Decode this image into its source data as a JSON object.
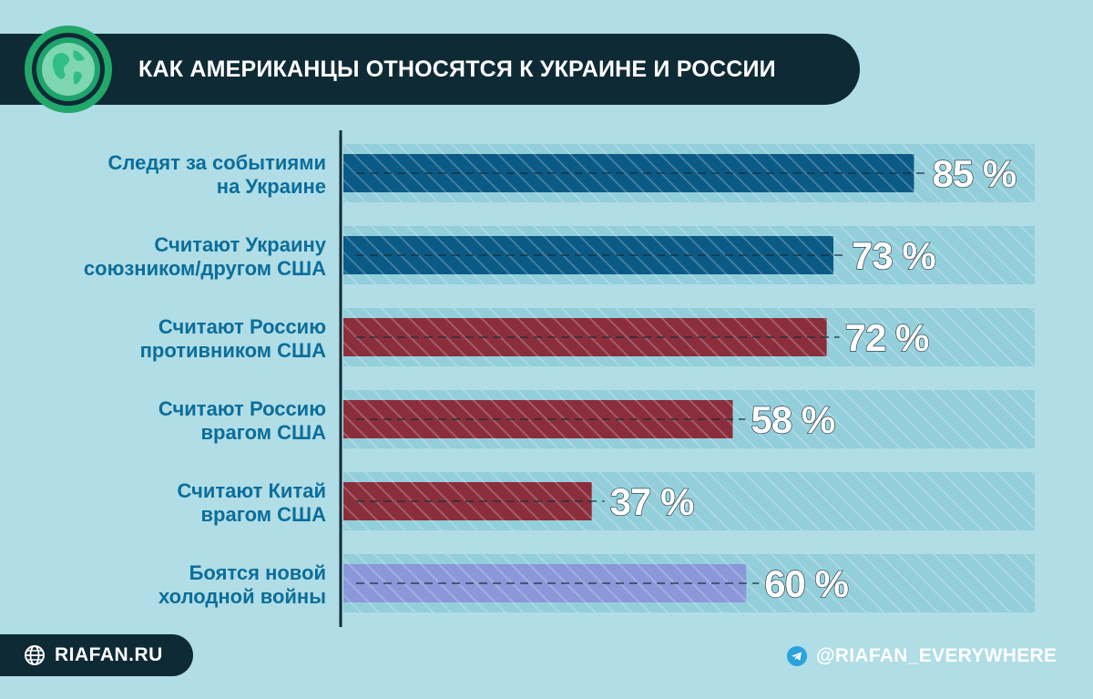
{
  "header": {
    "title": "КАК АМЕРИКАНЦЫ ОТНОСЯТСЯ К УКРАИНЕ И РОССИИ"
  },
  "footer": {
    "site": "RIAFAN.RU",
    "telegram": "@RIAFAN_EVERYWHERE"
  },
  "colors": {
    "background": "#b0dde6",
    "header_bg": "#0e2a35",
    "track": "#93cedb",
    "blue_bar": "#0b5a86",
    "red_bar": "#8b2e3c",
    "purple_bar": "#8a97d9",
    "label_text": "#0c6e99"
  },
  "chart_data": {
    "type": "bar",
    "orientation": "horizontal",
    "title": "КАК АМЕРИКАНЦЫ ОТНОСЯТСЯ К УКРАИНЕ И РОССИИ",
    "categories": [
      [
        "Следят за событиями",
        "на Украине"
      ],
      [
        "Считают Украину",
        "союзником/другом США"
      ],
      [
        "Считают Россию",
        "противником США"
      ],
      [
        "Считают Россию",
        "врагом США"
      ],
      [
        "Считают Китай",
        "врагом США"
      ],
      [
        "Боятся новой",
        "холодной войны"
      ]
    ],
    "values": [
      85,
      73,
      72,
      58,
      37,
      60
    ],
    "value_labels": [
      "85 %",
      "73 %",
      "72 %",
      "58 %",
      "37 %",
      "60 %"
    ],
    "bar_colors": [
      "#0b5a86",
      "#0b5a86",
      "#8b2e3c",
      "#8b2e3c",
      "#8b2e3c",
      "#8a97d9"
    ],
    "xlim": [
      0,
      100
    ],
    "unit": "%",
    "grid": false
  }
}
